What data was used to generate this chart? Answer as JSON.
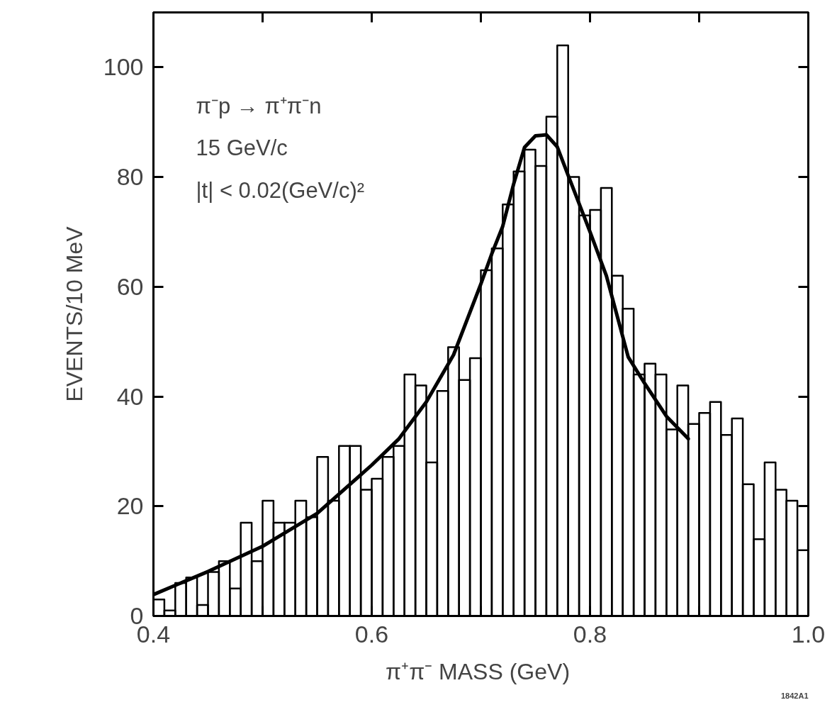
{
  "chart_data": {
    "type": "histogram",
    "xlabel": "π⁺π⁻  MASS (GeV)",
    "ylabel": "EVENTS/10 MeV",
    "annotations": [
      "π⁻p → π⁺π⁻n",
      "15 GeV/c",
      "|t| < 0.02(GeV/c)²",
      "1842A1"
    ],
    "bins": [
      0.4,
      0.41,
      0.42,
      0.43,
      0.44,
      0.45,
      0.46,
      0.47,
      0.48,
      0.49,
      0.5,
      0.51,
      0.52,
      0.53,
      0.54,
      0.55,
      0.56,
      0.57,
      0.58,
      0.59,
      0.6,
      0.61,
      0.62,
      0.63,
      0.64,
      0.65,
      0.66,
      0.67,
      0.68,
      0.69,
      0.7,
      0.71,
      0.72,
      0.73,
      0.74,
      0.75,
      0.76,
      0.77,
      0.78,
      0.79,
      0.8,
      0.81,
      0.82,
      0.83,
      0.84,
      0.85,
      0.86,
      0.87,
      0.88,
      0.89,
      0.9,
      0.91,
      0.92,
      0.93,
      0.94,
      0.95,
      0.96,
      0.97,
      0.98,
      0.99,
      1.0
    ],
    "values": [
      3,
      1,
      6,
      7,
      2,
      8,
      10,
      5,
      17,
      10,
      21,
      17,
      17,
      21,
      18,
      29,
      21,
      31,
      31,
      23,
      25,
      29,
      31,
      44,
      42,
      28,
      41,
      49,
      43,
      47,
      63,
      67,
      75,
      81,
      85,
      82,
      91,
      104,
      80,
      73,
      74,
      78,
      62,
      56,
      44,
      46,
      44,
      34,
      42,
      35,
      37,
      39,
      33,
      36,
      24,
      14,
      28,
      23,
      21,
      12
    ],
    "color": "#000000",
    "series": [
      {
        "type": "line",
        "color": "#000000",
        "x": [
          0.4,
          0.45,
          0.5,
          0.55,
          0.6,
          0.625,
          0.65,
          0.675,
          0.7,
          0.71,
          0.72,
          0.73,
          0.74,
          0.75,
          0.76,
          0.77,
          0.78,
          0.8,
          0.815,
          0.835,
          0.85,
          0.87,
          0.89
        ],
        "values": [
          3.9,
          8.1,
          12.7,
          18.7,
          27.5,
          32.3,
          39,
          47.6,
          60.5,
          66,
          71,
          78.7,
          85.4,
          87.5,
          87.7,
          85.5,
          80.3,
          70,
          62,
          47.2,
          42.4,
          36.4,
          32.3
        ]
      }
    ],
    "xlim": [
      0.4,
      1.0
    ],
    "ylim": [
      0,
      110
    ],
    "xticks": [
      0.4,
      {
        "value": 0.5,
        "label": null
      },
      0.6,
      {
        "value": 0.7,
        "label": null
      },
      0.8,
      {
        "value": 0.9,
        "label": null
      },
      {
        "value": 1.0,
        "label": "1.0"
      }
    ],
    "yticks": [
      0,
      20,
      40,
      60,
      80,
      100
    ],
    "tick_labels": "xy",
    "grid": false,
    "line_style": "solid"
  }
}
